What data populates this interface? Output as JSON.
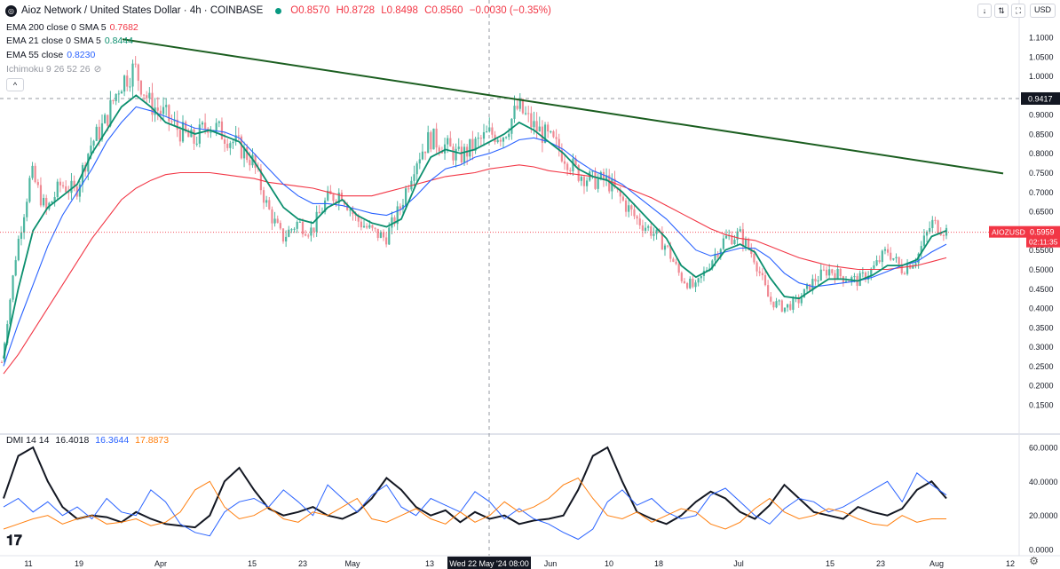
{
  "header": {
    "symbol_title": "Aioz Network / United States Dollar · 4h · COINBASE",
    "open": "O0.8570",
    "high": "H0.8728",
    "low": "L0.8498",
    "close": "C0.8560",
    "change": "−0.0030 (−0.35%)"
  },
  "toolbar": {
    "currency": "USD",
    "down_icon": "↓",
    "expand_icon": "⇅",
    "fullscreen_icon": "⛶",
    "up_icon": "↑"
  },
  "indicators": {
    "ema200": {
      "label": "EMA 200 close 0 SMA 5",
      "value": "0.7682",
      "color": "#f23645"
    },
    "ema21": {
      "label": "EMA 21 close 0 SMA 5",
      "value": "0.8444",
      "color": "#0b8f6e"
    },
    "ema55": {
      "label": "EMA 55 close",
      "value": "0.8230",
      "color": "#2962ff"
    },
    "ichimoku": {
      "label": "Ichimoku 9 26 52 26"
    },
    "dmi": {
      "label": "DMI 14 14",
      "adx": "16.4018",
      "plus": "16.3644",
      "minus": "17.8873"
    }
  },
  "collapse_icon": "^",
  "crosshair_time_label": "Wed 22 May '24   08:00",
  "price_tag": {
    "symbol": "AIOZUSD",
    "price": "0.5959",
    "countdown": "02:11:35"
  },
  "hover_price": "0.9417",
  "chart_data": [
    {
      "type": "candlestick",
      "title": "Aioz Network / United States Dollar · 4h · COINBASE",
      "y_axis_side": "right",
      "ylim": [
        0.15,
        1.12
      ],
      "y_ticks": [
        "1.1000",
        "1.0500",
        "1.0000",
        "0.9500",
        "0.9000",
        "0.8500",
        "0.8000",
        "0.7500",
        "0.7000",
        "0.6500",
        "0.6000",
        "0.5500",
        "0.5000",
        "0.4500",
        "0.4000",
        "0.3500",
        "0.3000",
        "0.2500",
        "0.2000",
        "0.1500"
      ],
      "x_ticks": [
        "11",
        "19",
        "Apr",
        "15",
        "23",
        "May",
        "13",
        "Jun",
        "10",
        "18",
        "Jul",
        "15",
        "23",
        "Aug",
        "12"
      ],
      "price_path": [
        0.26,
        0.55,
        0.75,
        0.65,
        0.72,
        0.7,
        0.82,
        0.88,
        0.98,
        1.02,
        0.93,
        0.9,
        0.86,
        0.83,
        0.88,
        0.85,
        0.82,
        0.78,
        0.66,
        0.58,
        0.62,
        0.6,
        0.68,
        0.7,
        0.63,
        0.6,
        0.58,
        0.66,
        0.78,
        0.84,
        0.82,
        0.79,
        0.82,
        0.85,
        0.85,
        0.92,
        0.87,
        0.84,
        0.8,
        0.75,
        0.73,
        0.73,
        0.68,
        0.63,
        0.6,
        0.56,
        0.48,
        0.45,
        0.52,
        0.58,
        0.59,
        0.53,
        0.42,
        0.4,
        0.42,
        0.47,
        0.5,
        0.48,
        0.47,
        0.5,
        0.55,
        0.5,
        0.53,
        0.62,
        0.6
      ],
      "series": [
        {
          "name": "EMA 200 close 0 SMA 5",
          "color": "#f23645",
          "values": [
            0.23,
            0.28,
            0.34,
            0.4,
            0.46,
            0.52,
            0.58,
            0.63,
            0.68,
            0.71,
            0.73,
            0.745,
            0.75,
            0.75,
            0.75,
            0.745,
            0.74,
            0.735,
            0.725,
            0.72,
            0.715,
            0.71,
            0.7,
            0.69,
            0.69,
            0.69,
            0.7,
            0.71,
            0.72,
            0.73,
            0.74,
            0.745,
            0.75,
            0.76,
            0.765,
            0.77,
            0.765,
            0.755,
            0.75,
            0.745,
            0.74,
            0.73,
            0.715,
            0.7,
            0.685,
            0.665,
            0.645,
            0.625,
            0.605,
            0.59,
            0.58,
            0.575,
            0.56,
            0.545,
            0.53,
            0.52,
            0.51,
            0.505,
            0.5,
            0.5,
            0.5,
            0.505,
            0.51,
            0.52,
            0.53
          ]
        },
        {
          "name": "EMA 55 close",
          "color": "#2962ff",
          "values": [
            0.25,
            0.36,
            0.46,
            0.56,
            0.64,
            0.7,
            0.76,
            0.83,
            0.88,
            0.92,
            0.91,
            0.895,
            0.88,
            0.865,
            0.86,
            0.855,
            0.84,
            0.8,
            0.76,
            0.72,
            0.69,
            0.67,
            0.67,
            0.665,
            0.655,
            0.645,
            0.64,
            0.655,
            0.69,
            0.73,
            0.76,
            0.77,
            0.79,
            0.8,
            0.815,
            0.835,
            0.84,
            0.83,
            0.81,
            0.78,
            0.755,
            0.74,
            0.72,
            0.69,
            0.66,
            0.63,
            0.59,
            0.55,
            0.535,
            0.545,
            0.555,
            0.555,
            0.53,
            0.49,
            0.465,
            0.455,
            0.46,
            0.465,
            0.47,
            0.48,
            0.495,
            0.51,
            0.52,
            0.545,
            0.565
          ]
        },
        {
          "name": "EMA 21 close 0 SMA 5",
          "color": "#0b8f6e",
          "values": [
            0.27,
            0.45,
            0.6,
            0.66,
            0.69,
            0.72,
            0.8,
            0.86,
            0.92,
            0.95,
            0.92,
            0.88,
            0.865,
            0.85,
            0.86,
            0.845,
            0.83,
            0.78,
            0.72,
            0.66,
            0.63,
            0.62,
            0.66,
            0.68,
            0.64,
            0.62,
            0.61,
            0.63,
            0.72,
            0.79,
            0.81,
            0.8,
            0.81,
            0.83,
            0.85,
            0.88,
            0.86,
            0.83,
            0.8,
            0.76,
            0.74,
            0.73,
            0.7,
            0.66,
            0.62,
            0.58,
            0.51,
            0.48,
            0.5,
            0.55,
            0.565,
            0.545,
            0.48,
            0.43,
            0.425,
            0.45,
            0.475,
            0.475,
            0.47,
            0.485,
            0.51,
            0.51,
            0.525,
            0.585,
            0.6
          ]
        }
      ],
      "trendline": {
        "from": {
          "x_index": 9,
          "y": 1.095
        },
        "to": {
          "x_index": 64,
          "y": 0.748
        },
        "color": "#1b5e20"
      },
      "last_price": 0.5959,
      "hover_price": 0.9417
    },
    {
      "type": "line",
      "title": "DMI 14 14",
      "ylim": [
        0,
        65
      ],
      "y_ticks": [
        "60.0000",
        "40.0000",
        "20.0000",
        "0.0000"
      ],
      "series": [
        {
          "name": "ADX",
          "color": "#131722",
          "values": [
            30,
            55,
            60,
            40,
            25,
            18,
            20,
            19,
            16,
            22,
            18,
            15,
            14,
            13,
            20,
            40,
            48,
            35,
            24,
            20,
            22,
            25,
            20,
            18,
            22,
            30,
            42,
            35,
            25,
            20,
            23,
            16,
            22,
            18,
            20,
            15,
            17,
            18,
            20,
            35,
            55,
            60,
            40,
            22,
            18,
            15,
            20,
            28,
            34,
            30,
            22,
            18,
            26,
            38,
            30,
            22,
            20,
            18,
            25,
            22,
            20,
            24,
            35,
            40,
            30
          ]
        },
        {
          "name": "+DI",
          "color": "#2962ff",
          "values": [
            25,
            30,
            22,
            28,
            20,
            25,
            18,
            30,
            22,
            20,
            35,
            28,
            15,
            10,
            8,
            22,
            28,
            30,
            25,
            35,
            28,
            20,
            38,
            30,
            22,
            32,
            38,
            25,
            20,
            30,
            26,
            22,
            34,
            28,
            18,
            24,
            18,
            15,
            10,
            6,
            12,
            28,
            35,
            26,
            30,
            22,
            18,
            20,
            32,
            36,
            28,
            20,
            15,
            24,
            30,
            28,
            22,
            25,
            30,
            35,
            40,
            28,
            45,
            38,
            32
          ]
        },
        {
          "name": "−DI",
          "color": "#ff7f0e",
          "values": [
            12,
            15,
            18,
            20,
            15,
            18,
            20,
            15,
            16,
            18,
            14,
            16,
            22,
            35,
            40,
            25,
            18,
            20,
            25,
            18,
            16,
            22,
            20,
            25,
            30,
            18,
            16,
            20,
            24,
            18,
            15,
            22,
            16,
            20,
            28,
            22,
            25,
            30,
            38,
            42,
            30,
            20,
            18,
            22,
            16,
            20,
            24,
            22,
            15,
            12,
            16,
            24,
            30,
            22,
            18,
            20,
            24,
            22,
            18,
            15,
            14,
            20,
            16,
            18,
            18
          ]
        }
      ]
    }
  ]
}
